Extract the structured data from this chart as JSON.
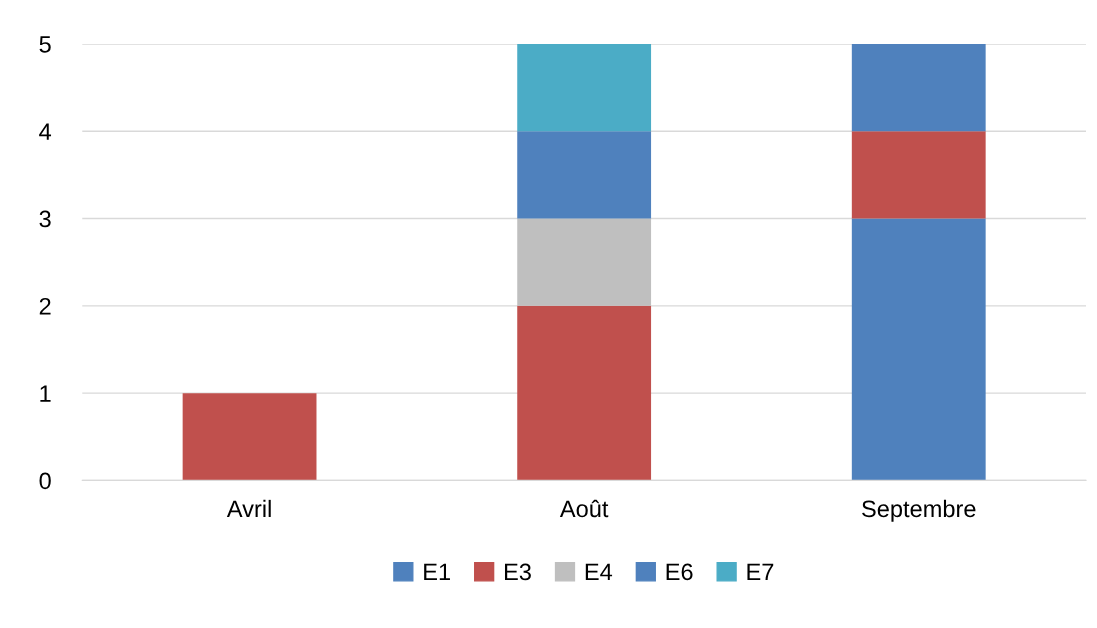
{
  "chart_data": {
    "type": "bar",
    "stacked": true,
    "categories": [
      "Avril",
      "Août",
      "Septembre"
    ],
    "series": [
      {
        "name": "E1",
        "color": "#4f81bd",
        "values": [
          null,
          null,
          3
        ]
      },
      {
        "name": "E3",
        "color": "#c0504d",
        "values": [
          1,
          2,
          1
        ]
      },
      {
        "name": "E4",
        "color": "#bfbfbf",
        "values": [
          null,
          1,
          null
        ]
      },
      {
        "name": "E6",
        "color": "#4f81bd",
        "values": [
          null,
          1,
          1
        ]
      },
      {
        "name": "E7",
        "color": "#4bacc6",
        "values": [
          null,
          1,
          null
        ]
      }
    ],
    "ylim": [
      0,
      5
    ],
    "yticks": [
      0,
      1,
      2,
      3,
      4,
      5
    ],
    "grid": "y",
    "legend": "bottom"
  }
}
